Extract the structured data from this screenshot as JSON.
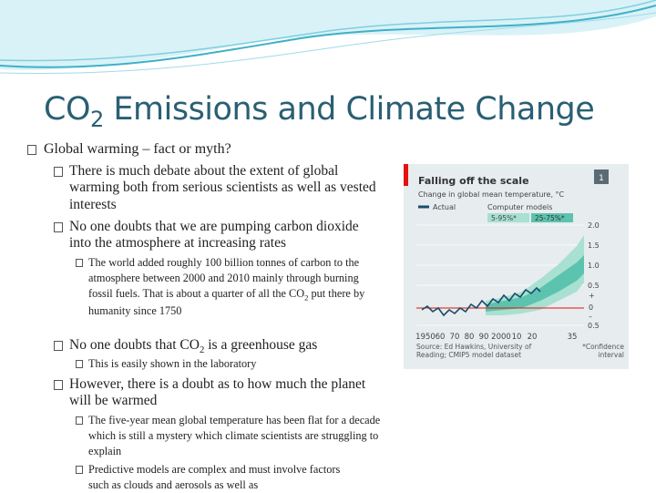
{
  "title": {
    "prefix": "CO",
    "subscript": "2",
    "rest": " Emissions and Climate Change"
  },
  "bullets": [
    "Global warming – fact or myth?",
    "There is much debate about the extent of global warming both from serious scientists as well as vested interests",
    "No one doubts that we are pumping carbon dioxide into the atmosphere at increasing rates",
    {
      "before": "The world added roughly 100 billion tonnes of carbon to the atmosphere between 2000 and 2010 mainly through burning fossil fuels. That is about a quarter of all the CO",
      "sub": "2",
      "after": " put there by humanity since 1750"
    },
    {
      "before": "No one doubts that CO",
      "sub": "2",
      "after": "  is a greenhouse gas"
    },
    "This is easily shown in the laboratory",
    "However, there is a doubt as to how much the planet will be warmed",
    "The five-year mean global temperature has been flat for a decade which is still a mystery which climate scientists are struggling to explain",
    "Predictive models are complex and must involve factors such as clouds and aerosols as well as"
  ],
  "figure": {
    "badge": "1",
    "title": "Falling off the scale",
    "subtitle": "Change in global mean temperature, °C",
    "legend": {
      "actual": "Actual",
      "models": "Computer models",
      "band_wide": "5-95%*",
      "band_narrow": "25-75%*"
    },
    "y_labels": [
      "2.0",
      "1.5",
      "1.0",
      "0.5",
      "+",
      "0",
      "–",
      "0.5"
    ],
    "x_labels": [
      "1950",
      "60",
      "70",
      "80",
      "90",
      "2000",
      "10",
      "20",
      "35"
    ],
    "source": "Source: Ed Hawkins, University of Reading; CMIP5 model dataset",
    "note": "*Confidence interval"
  }
}
